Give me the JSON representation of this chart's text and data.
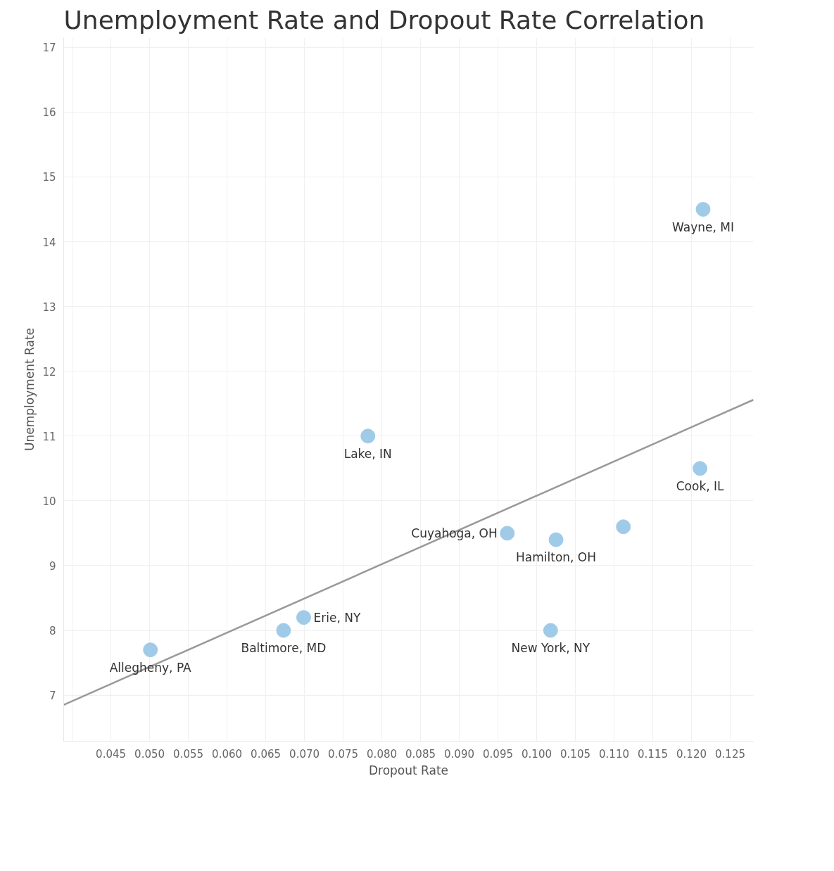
{
  "chart_data": {
    "type": "scatter",
    "title": "Unemployment Rate and Dropout Rate Correlation",
    "xlabel": "Dropout Rate",
    "ylabel": "Unemployment Rate",
    "xlim": [
      0.0389,
      0.128
    ],
    "ylim": [
      6.29,
      17.15
    ],
    "xticks": [
      {
        "value": 0.04,
        "label": null
      },
      {
        "value": 0.045,
        "label": "0.045"
      },
      {
        "value": 0.05,
        "label": "0.050"
      },
      {
        "value": 0.055,
        "label": "0.055"
      },
      {
        "value": 0.06,
        "label": "0.060"
      },
      {
        "value": 0.065,
        "label": "0.065"
      },
      {
        "value": 0.07,
        "label": "0.070"
      },
      {
        "value": 0.075,
        "label": "0.075"
      },
      {
        "value": 0.08,
        "label": "0.080"
      },
      {
        "value": 0.085,
        "label": "0.085"
      },
      {
        "value": 0.09,
        "label": "0.090"
      },
      {
        "value": 0.095,
        "label": "0.095"
      },
      {
        "value": 0.1,
        "label": "0.100"
      },
      {
        "value": 0.105,
        "label": "0.105"
      },
      {
        "value": 0.11,
        "label": "0.110"
      },
      {
        "value": 0.115,
        "label": "0.115"
      },
      {
        "value": 0.12,
        "label": "0.120"
      },
      {
        "value": 0.125,
        "label": "0.125"
      }
    ],
    "yticks": [
      7,
      8,
      9,
      10,
      11,
      12,
      13,
      14,
      15,
      16,
      17
    ],
    "grid": true,
    "series": [
      {
        "color": "#a0cbe8",
        "marker": "circle",
        "x": [
          0.0501,
          0.0673,
          0.0699,
          0.0782,
          0.0962,
          0.1025,
          0.1112,
          0.1018,
          0.1211,
          0.1215
        ],
        "values": [
          7.7,
          8.0,
          8.2,
          11.0,
          9.5,
          9.4,
          9.6,
          8.0,
          10.5,
          14.5
        ]
      },
      {
        "type": "line",
        "color": "#999999",
        "marker": "none",
        "x": [
          0.0389,
          0.128
        ],
        "values": [
          6.85,
          11.56
        ]
      }
    ],
    "annotations": [
      {
        "text": "Wayne, MI",
        "x": 0.1215,
        "y": 14.5
      },
      {
        "text": "Cook, IL",
        "x": 0.1211,
        "y": 10.5
      },
      {
        "text": "Lake, IN",
        "x": 0.0782,
        "y": 11.0
      },
      {
        "text": "Hamilton, OH",
        "x": 0.1025,
        "y": 9.4
      },
      {
        "text": "Cuyahoga, OH",
        "x": 0.0962,
        "y": 9.5
      },
      {
        "text": "New York, NY",
        "x": 0.1018,
        "y": 8.0
      },
      {
        "text": "Baltimore, MD",
        "x": 0.0673,
        "y": 8.0
      },
      {
        "text": "Erie, NY",
        "x": 0.0699,
        "y": 8.2
      },
      {
        "text": "Allegheny, PA",
        "x": 0.0501,
        "y": 7.7
      }
    ]
  }
}
